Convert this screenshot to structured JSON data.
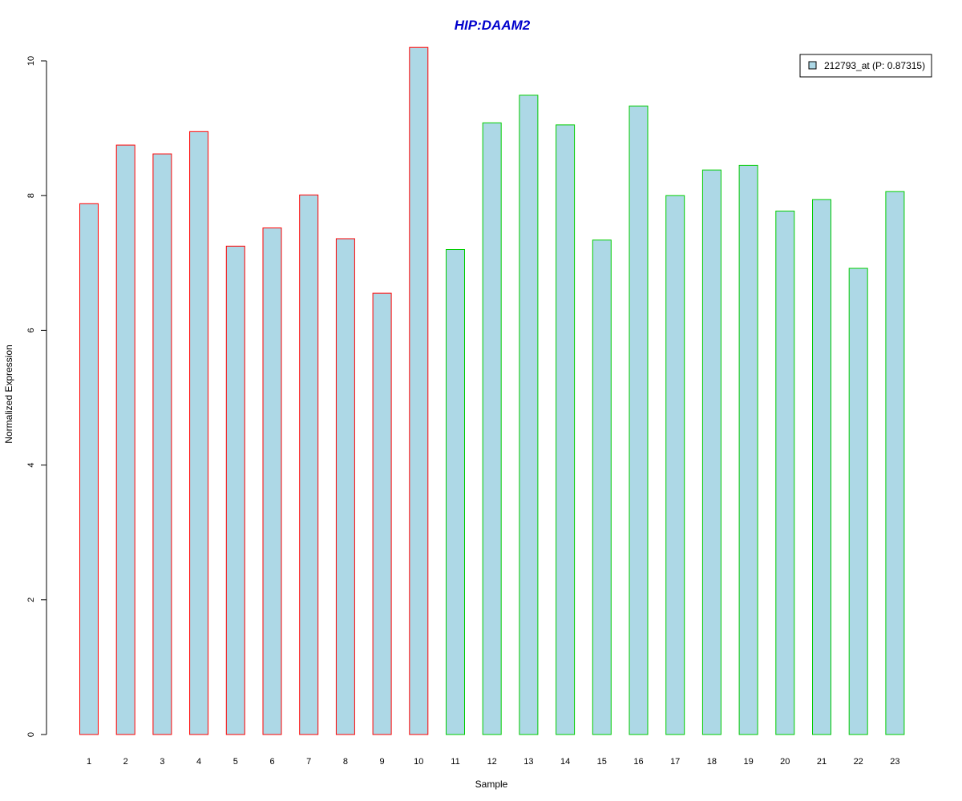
{
  "colors": {
    "title": "#0000CC",
    "bar_fill": "#ADD8E6",
    "group1_border": "#FF0000",
    "group2_border": "#00CC00",
    "axis": "#000000"
  },
  "chart_data": {
    "type": "bar",
    "title": "HIP:DAAM2",
    "xlabel": "Sample",
    "ylabel": "Normalized Expression",
    "ylim": [
      0,
      10.2
    ],
    "yticks": [
      0,
      2,
      4,
      6,
      8,
      10
    ],
    "categories": [
      "1",
      "2",
      "3",
      "4",
      "5",
      "6",
      "7",
      "8",
      "9",
      "10",
      "11",
      "12",
      "13",
      "14",
      "15",
      "16",
      "17",
      "18",
      "19",
      "20",
      "21",
      "22",
      "23"
    ],
    "series": [
      {
        "name": "212793_at (P: 0.87315)",
        "values": [
          7.88,
          8.75,
          8.62,
          8.95,
          7.25,
          7.52,
          8.01,
          7.36,
          6.55,
          10.2,
          7.2,
          9.08,
          9.49,
          9.05,
          7.34,
          9.33,
          8.0,
          8.38,
          8.45,
          7.77,
          7.94,
          6.92,
          8.06
        ]
      }
    ],
    "groups": [
      1,
      1,
      1,
      1,
      1,
      1,
      1,
      1,
      1,
      1,
      2,
      2,
      2,
      2,
      2,
      2,
      2,
      2,
      2,
      2,
      2,
      2,
      2
    ],
    "legend": {
      "placement": "top-right",
      "label": "212793_at (P: 0.87315)"
    },
    "grid": false
  }
}
